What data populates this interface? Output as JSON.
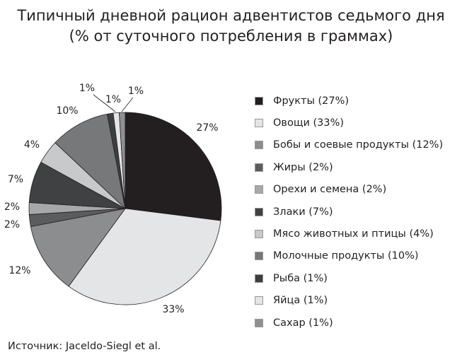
{
  "chart_data": {
    "type": "pie",
    "title": "Типичный дневной рацион адвентистов седьмого дня",
    "subtitle": "(% от суточного потребления в граммах)",
    "start": "top",
    "direction": "clockwise",
    "legend_position": "right",
    "slices": [
      {
        "label": "Фрукты (27%)",
        "value": 27,
        "data_label": "27%",
        "color": "#231f20"
      },
      {
        "label": "Овощи (33%)",
        "value": 33,
        "data_label": "33%",
        "color": "#e4e5e6"
      },
      {
        "label": "Бобы и соевые продукты (12%)",
        "value": 12,
        "data_label": "12%",
        "color": "#8c8d8f"
      },
      {
        "label": "Жиры (2%)",
        "value": 2,
        "data_label": "2%",
        "color": "#5b5c5e"
      },
      {
        "label": "Орехи и семена (2%)",
        "value": 2,
        "data_label": "2%",
        "color": "#a7a8aa"
      },
      {
        "label": "Злаки (7%)",
        "value": 7,
        "data_label": "7%",
        "color": "#404143"
      },
      {
        "label": "Мясо животных и птицы (4%)",
        "value": 4,
        "data_label": "4%",
        "color": "#c8c9cb"
      },
      {
        "label": "Молочные продукты (10%)",
        "value": 10,
        "data_label": "10%",
        "color": "#77787a"
      },
      {
        "label": "Рыба (1%)",
        "value": 1,
        "data_label": "1%",
        "color": "#3d3e40"
      },
      {
        "label": "Яйца (1%)",
        "value": 1,
        "data_label": "1%",
        "color": "#e4e5e6"
      },
      {
        "label": "Сахар (1%)",
        "value": 1,
        "data_label": "1%",
        "color": "#8f9092"
      }
    ]
  },
  "source": "Источник: Jaceldo-Siegl et al."
}
